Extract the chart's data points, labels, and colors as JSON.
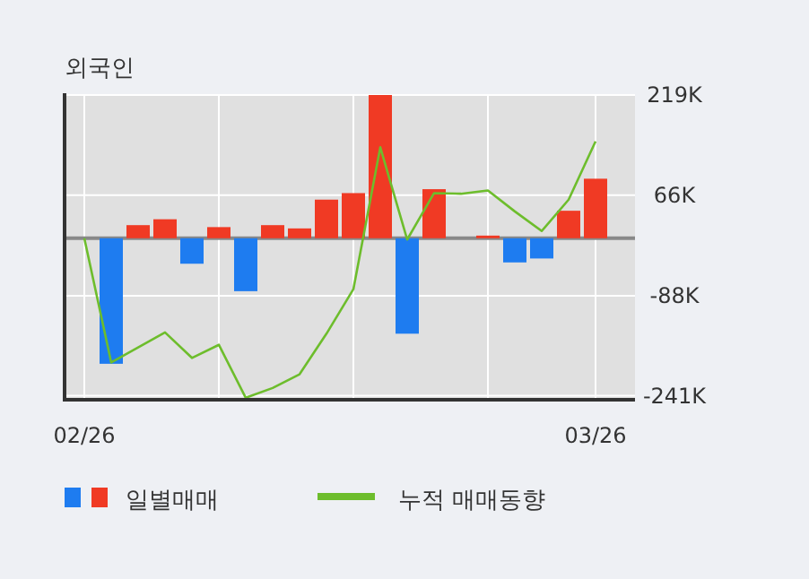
{
  "chart_data": {
    "type": "bar",
    "title": "외국인",
    "categories": [
      "02/26",
      null,
      null,
      null,
      null,
      null,
      null,
      null,
      null,
      null,
      null,
      null,
      null,
      null,
      null,
      null,
      null,
      null,
      null,
      "03/26"
    ],
    "series": [
      {
        "name": "일별매매",
        "values": [
          0,
          -192,
          20,
          29,
          -39,
          17,
          -81,
          20,
          15,
          59,
          69,
          219,
          -146,
          75,
          0,
          4,
          -37,
          -31,
          42,
          91
        ],
        "colors": [
          "#f03a24",
          "#1e7cf0",
          "#f03a24",
          "#f03a24",
          "#1e7cf0",
          "#f03a24",
          "#1e7cf0",
          "#f03a24",
          "#f03a24",
          "#f03a24",
          "#f03a24",
          "#f03a24",
          "#1e7cf0",
          "#f03a24",
          "#f03a24",
          "#f03a24",
          "#1e7cf0",
          "#1e7cf0",
          "#f03a24",
          "#f03a24"
        ]
      },
      {
        "type": "line",
        "name": "누적 매매동향",
        "color": "#6dbd2c",
        "values": [
          0,
          -190,
          -167,
          -144,
          -183,
          -163,
          -244,
          -229,
          -208,
          -146,
          -78,
          139,
          -2,
          69,
          68,
          73,
          41,
          11,
          59,
          148
        ]
      }
    ],
    "ylim": [
      -247,
      219
    ],
    "yticks": [
      {
        "value": 219,
        "label": "219K"
      },
      {
        "value": 66,
        "label": "66K"
      },
      {
        "value": -88,
        "label": "-88K"
      },
      {
        "value": -241,
        "label": "-241K"
      }
    ],
    "grid": true,
    "legend": "bottom left"
  }
}
